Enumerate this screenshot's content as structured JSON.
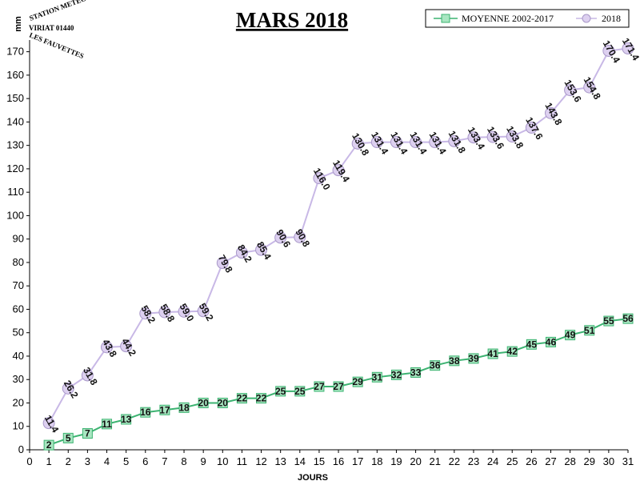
{
  "chart_data": {
    "type": "line",
    "title": "MARS 2018",
    "xlabel": "JOURS",
    "ylabel": "mm",
    "xlim": [
      0,
      31
    ],
    "ylim": [
      0,
      175
    ],
    "x_ticks": [
      0,
      1,
      2,
      3,
      4,
      5,
      6,
      7,
      8,
      9,
      10,
      11,
      12,
      13,
      14,
      15,
      16,
      17,
      18,
      19,
      20,
      21,
      22,
      23,
      24,
      25,
      26,
      27,
      28,
      29,
      30,
      31
    ],
    "y_ticks": [
      0,
      10,
      20,
      30,
      40,
      50,
      60,
      70,
      80,
      90,
      100,
      110,
      120,
      130,
      140,
      150,
      160,
      170
    ],
    "x": [
      1,
      2,
      3,
      4,
      5,
      6,
      7,
      8,
      9,
      10,
      11,
      12,
      13,
      14,
      15,
      16,
      17,
      18,
      19,
      20,
      21,
      22,
      23,
      24,
      25,
      26,
      27,
      28,
      29,
      30,
      31
    ],
    "legend_position": "top-right",
    "grid": false,
    "series": [
      {
        "name": "MOYENNE 2002-2017",
        "marker": "square",
        "color": "#3cb371",
        "fill": "#a8e6c1",
        "values": [
          2,
          5,
          7,
          11,
          13,
          16,
          17,
          18,
          20,
          20,
          22,
          22,
          25,
          25,
          27,
          27,
          29,
          31,
          32,
          33,
          36,
          38,
          39,
          41,
          42,
          45,
          46,
          49,
          51,
          55,
          56
        ],
        "labels": [
          "2",
          "5",
          "7",
          "11",
          "13",
          "16",
          "17",
          "18",
          "20",
          "20",
          "22",
          "22",
          "25",
          "25",
          "27",
          "27",
          "29",
          "31",
          "32",
          "33",
          "36",
          "38",
          "39",
          "41",
          "42",
          "45",
          "46",
          "49",
          "51",
          "55",
          "56"
        ]
      },
      {
        "name": "2018",
        "marker": "circle",
        "color": "#c8b8e6",
        "fill": "#ddd0f0",
        "values": [
          11.4,
          26.2,
          31.8,
          43.8,
          44.2,
          58.2,
          58.8,
          59.0,
          59.2,
          79.8,
          84.2,
          85.4,
          90.6,
          90.8,
          116.0,
          119.4,
          130.8,
          131.4,
          131.4,
          131.4,
          131.4,
          131.8,
          133.4,
          133.6,
          133.8,
          137.6,
          143.8,
          153.6,
          154.8,
          170.4,
          171.4
        ],
        "labels": [
          "11.4",
          "26.2",
          "31.8",
          "43.8",
          "44.2",
          "58.2",
          "58.8",
          "59.0",
          "59.2",
          "79.8",
          "84.2",
          "85.4",
          "90.6",
          "90.8",
          "116.0",
          "119.4",
          "130.8",
          "131.4",
          "131.4",
          "131.4",
          "131.4",
          "131.8",
          "133.4",
          "133.6",
          "133.8",
          "137.6",
          "143.8",
          "153.6",
          "154.8",
          "170.4",
          "171.4"
        ]
      }
    ]
  },
  "logo": {
    "line1": "STATION METEO",
    "line2": "VIRIAT 01440",
    "line3": "LES FAUVETTES"
  }
}
